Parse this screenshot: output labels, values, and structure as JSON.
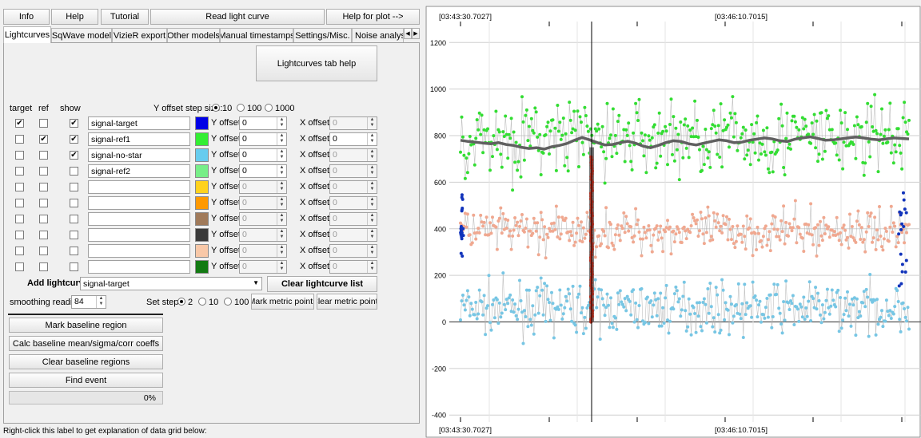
{
  "top_buttons": {
    "info": "Info",
    "help": "Help",
    "tutorial": "Tutorial",
    "read_light_curve": "Read light curve",
    "help_for_plot": "Help for plot -->"
  },
  "tabs": [
    "Lightcurves",
    "SqWave model",
    "VizieR export",
    "Other models",
    "Manual timestamps",
    "Settings/Misc.",
    "Noise analysis/l"
  ],
  "tab_help_button": "Lightcurves tab help",
  "grid_headers": {
    "target": "target",
    "ref": "ref",
    "show": "show"
  },
  "y_offset_step": {
    "label": "Y offset step size:",
    "options": [
      "10",
      "100",
      "1000"
    ],
    "selected": "10"
  },
  "row_labels": {
    "y_offset": "Y offset:",
    "x_offset": "X offset:"
  },
  "rows": [
    {
      "target": true,
      "ref": false,
      "show": true,
      "name": "signal-target",
      "color": "#0000e6",
      "y": "0",
      "x": "0",
      "x_enabled": false
    },
    {
      "target": false,
      "ref": true,
      "show": true,
      "name": "signal-ref1",
      "color": "#33ee33",
      "y": "0",
      "x": "0",
      "x_enabled": true
    },
    {
      "target": false,
      "ref": false,
      "show": true,
      "name": "signal-no-star",
      "color": "#66ccee",
      "y": "0",
      "x": "0",
      "x_enabled": false
    },
    {
      "target": false,
      "ref": false,
      "show": false,
      "name": "signal-ref2",
      "color": "#77ee88",
      "y": "0",
      "x": "0",
      "x_enabled": false
    },
    {
      "target": false,
      "ref": false,
      "show": false,
      "name": "",
      "color": "#ffd21e",
      "y": "0",
      "x": "0",
      "x_enabled": false
    },
    {
      "target": false,
      "ref": false,
      "show": false,
      "name": "",
      "color": "#ff9900",
      "y": "0",
      "x": "0",
      "x_enabled": false
    },
    {
      "target": false,
      "ref": false,
      "show": false,
      "name": "",
      "color": "#a07a5a",
      "y": "0",
      "x": "0",
      "x_enabled": false
    },
    {
      "target": false,
      "ref": false,
      "show": false,
      "name": "",
      "color": "#3a3a3a",
      "y": "0",
      "x": "0",
      "x_enabled": false
    },
    {
      "target": false,
      "ref": false,
      "show": false,
      "name": "",
      "color": "#f8c8a8",
      "y": "0",
      "x": "0",
      "x_enabled": false
    },
    {
      "target": false,
      "ref": false,
      "show": false,
      "name": "",
      "color": "#137a13",
      "y": "0",
      "x": "0",
      "x_enabled": false
    }
  ],
  "add_lightcurve": {
    "label": "Add lightcurve",
    "selected": "signal-target"
  },
  "clear_lightcurve_list": "Clear lightcurve list",
  "smoothing": {
    "label": "smoothing readings",
    "value": "84"
  },
  "set_step": {
    "label": "Set step:",
    "options": [
      "2",
      "10",
      "100"
    ],
    "selected": "2"
  },
  "mark_metric_points": "Mark metric points",
  "clear_metric_points": "Clear metric points",
  "baseline_buttons": {
    "mark": "Mark baseline region",
    "calc": "Calc baseline mean/sigma/corr coeffs",
    "clear": "Clear baseline regions",
    "find_event": "Find event"
  },
  "progress": {
    "text": "0%",
    "fraction": 0
  },
  "status_text": "Right-click this label to get explanation of data grid below:",
  "chart_data": {
    "type": "scatter",
    "top_timestamps": [
      "[03:43:30.7027]",
      "[03:46:10.7015]"
    ],
    "bottom_timestamps": [
      "[03:43:30.7027]",
      "[03:46:10.7015]"
    ],
    "y_ticks": [
      1200,
      1000,
      800,
      600,
      400,
      200,
      0,
      -200,
      -400
    ],
    "ylim": [
      -430,
      1290
    ],
    "series_colors": {
      "ref1": "#33dd33",
      "target": "#f0a890",
      "no_star": "#77c6e4",
      "target_edges": "#1133bb",
      "smoothed": "#606060",
      "metric": "#b83020"
    },
    "smoothed_line": [
      780,
      775,
      772,
      768,
      765,
      770,
      762,
      758,
      750,
      745,
      748,
      742,
      752,
      758,
      766,
      780,
      792,
      782,
      770,
      760,
      762,
      770,
      776,
      768,
      755,
      748,
      758,
      770,
      778,
      775,
      765,
      760,
      768,
      775,
      782,
      778,
      770,
      772,
      780,
      785,
      790,
      786,
      778,
      775,
      785,
      790,
      795,
      788,
      780,
      782,
      786,
      790,
      794,
      790,
      785,
      782,
      786,
      790,
      788,
      786
    ]
  }
}
